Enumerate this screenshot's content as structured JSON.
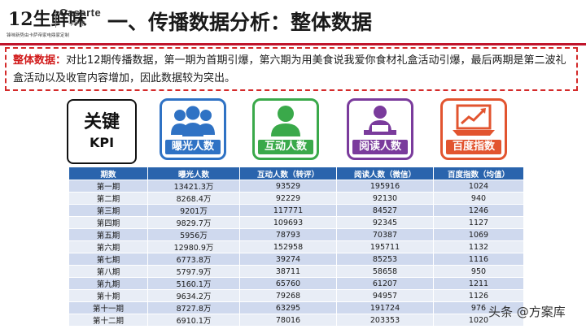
{
  "logo": {
    "line1": "12生鲜味",
    "brand": "Casarte",
    "brand_sub": "卡萨帝",
    "tagline": "锋味新势由卡萨帝家电鼎家定制"
  },
  "title": "一、传播数据分析：整体数据",
  "desc": {
    "highlight": "整体数据：",
    "text": "对比12期传播数据，第一期为首期引爆，第六期为用美食说我爱你食材礼盒活动引爆，最后两期是第二波礼盒活动以及收官内容增加，因此数据较为突出。"
  },
  "kpi": {
    "line1": "关键",
    "line2": "KPI"
  },
  "cards": [
    {
      "label": "曝光人数",
      "color": "#2f72c4",
      "icon": "people-group-icon"
    },
    {
      "label": "互动人数",
      "color": "#3aa94a",
      "icon": "user-icon"
    },
    {
      "label": "阅读人数",
      "color": "#7a3b9c",
      "icon": "reader-icon"
    },
    {
      "label": "百度指数",
      "color": "#e2542f",
      "icon": "trend-laptop-icon"
    }
  ],
  "table": {
    "headers": [
      "期数",
      "曝光人数",
      "互动人数（转评）",
      "阅读人数（微信）",
      "百度指数（均值）"
    ],
    "rows": [
      [
        "第一期",
        "13421.3万",
        "93529",
        "195916",
        "1024"
      ],
      [
        "第二期",
        "8268.4万",
        "92229",
        "92130",
        "940"
      ],
      [
        "第三期",
        "9201万",
        "117771",
        "84527",
        "1246"
      ],
      [
        "第四期",
        "9829.7万",
        "109693",
        "92345",
        "1127"
      ],
      [
        "第五期",
        "5956万",
        "78793",
        "70387",
        "1069"
      ],
      [
        "第六期",
        "12980.9万",
        "152958",
        "195711",
        "1132"
      ],
      [
        "第七期",
        "6773.8万",
        "39274",
        "85253",
        "1116"
      ],
      [
        "第八期",
        "5797.9万",
        "38711",
        "58658",
        "950"
      ],
      [
        "第九期",
        "5160.1万",
        "65760",
        "61207",
        "1211"
      ],
      [
        "第十期",
        "9634.2万",
        "79268",
        "94957",
        "1126"
      ],
      [
        "第十一期",
        "8727.8万",
        "63295",
        "191724",
        "976"
      ],
      [
        "第十二期",
        "6910.1万",
        "78016",
        "203353",
        "1020"
      ]
    ]
  },
  "watermark": "头条 @方案库"
}
